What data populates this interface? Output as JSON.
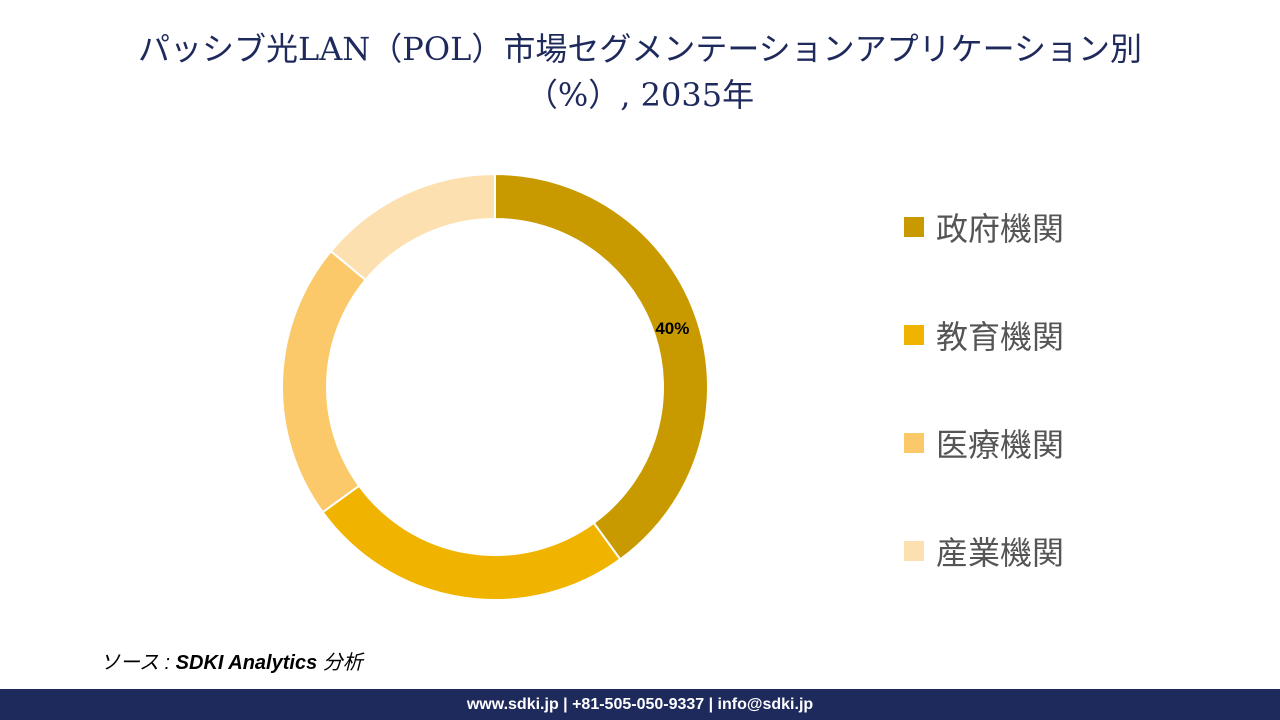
{
  "title": {
    "line1": "パッシブ光LAN（POL）市場セグメンテーションアプリケーション別",
    "line2": "（%）, 2035年"
  },
  "chart_data": {
    "type": "pie",
    "subtype": "donut",
    "categories": [
      "政府機関",
      "教育機関",
      "医療機関",
      "産業機関"
    ],
    "values": [
      40,
      25,
      21,
      14
    ],
    "colors": [
      "#c89a00",
      "#f0b400",
      "#fbc96a",
      "#fde0b0"
    ],
    "data_labels": [
      "40%",
      "",
      "",
      ""
    ],
    "legend_position": "right"
  },
  "source": {
    "prefix": "ソース : ",
    "bold": "SDKI Analytics",
    "suffix": " 分析"
  },
  "footer": {
    "contact": "www.sdki.jp | +81-505-050-9337 | info@sdki.jp"
  }
}
